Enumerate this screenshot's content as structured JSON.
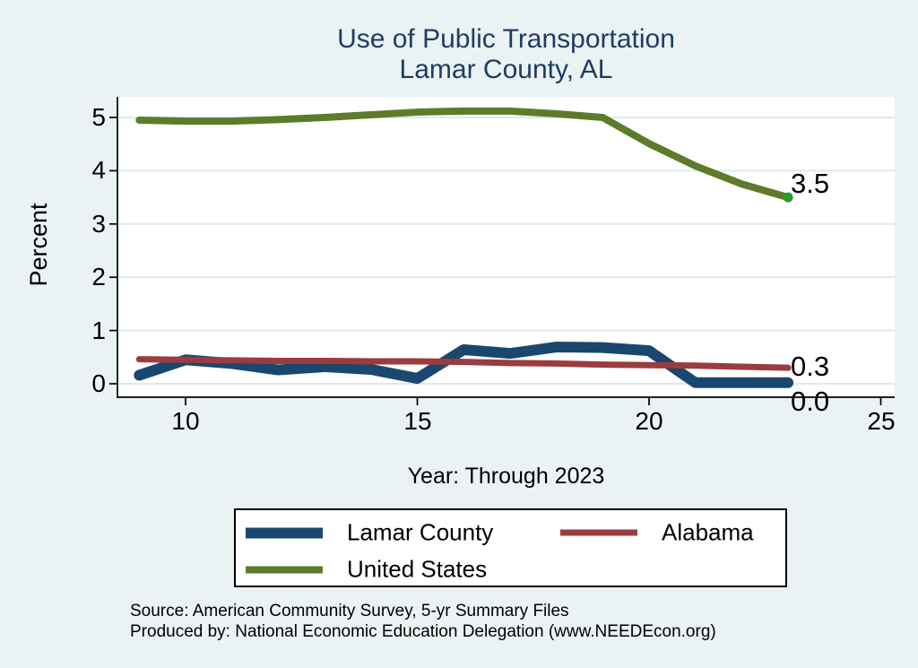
{
  "title": {
    "line1": "Use of Public Transportation",
    "line2": "Lamar County, AL"
  },
  "axes": {
    "y_label": "Percent",
    "x_label": "Year: Through 2023"
  },
  "chart_data": {
    "type": "line",
    "title": "Use of Public Transportation Lamar County, AL",
    "xlabel": "Year: Through 2023",
    "ylabel": "Percent",
    "x": [
      9,
      10,
      11,
      12,
      13,
      14,
      15,
      16,
      17,
      18,
      19,
      20,
      21,
      22,
      23
    ],
    "series": [
      {
        "name": "Lamar County",
        "color": "#1a476f",
        "width": 12,
        "values": [
          0.16,
          0.45,
          0.38,
          0.26,
          0.32,
          0.27,
          0.1,
          0.64,
          0.57,
          0.69,
          0.68,
          0.62,
          0.02,
          0.02,
          0.02
        ]
      },
      {
        "name": "Alabama",
        "color": "#9a3c40",
        "width": 7,
        "values": [
          0.46,
          0.45,
          0.44,
          0.43,
          0.43,
          0.42,
          0.42,
          0.41,
          0.39,
          0.38,
          0.36,
          0.35,
          0.34,
          0.32,
          0.3
        ]
      },
      {
        "name": "United States",
        "color": "#5c7c29",
        "width": 8,
        "end_marker": true,
        "end_marker_color": "#2a9c29",
        "values": [
          4.95,
          4.93,
          4.93,
          4.96,
          5.0,
          5.05,
          5.1,
          5.12,
          5.12,
          5.07,
          5.0,
          4.51,
          4.09,
          3.75,
          3.5
        ]
      }
    ],
    "xticks": [
      10,
      15,
      20,
      25
    ],
    "xtick_labels": [
      "10",
      "15",
      "20",
      "25"
    ],
    "yticks": [
      0,
      1,
      2,
      3,
      4,
      5
    ],
    "ytick_labels": [
      "0",
      "1",
      "2",
      "3",
      "4",
      "5"
    ],
    "xlim": [
      8.55,
      25.3
    ],
    "ylim": [
      -0.25,
      5.39
    ],
    "grid": true,
    "legend_position": "bottom",
    "end_labels": [
      {
        "series": "United States",
        "text": "3.5"
      },
      {
        "series": "Alabama",
        "text": "0.3"
      },
      {
        "series": "Lamar County",
        "text": "0.0"
      }
    ]
  },
  "legend": {
    "items": [
      "Lamar County",
      "Alabama",
      "United States"
    ]
  },
  "footer": {
    "source": "Source: American Community Survey, 5-yr Summary Files",
    "produced_by": "Produced by: National Economic Education Delegation (www.NEEDEcon.org)"
  },
  "colors": {
    "background": "#eaf2f3",
    "plot_background": "#ffffff",
    "gridline": "#dce9f0",
    "axis": "#000000",
    "title": "#1e3d63",
    "text": "#000000",
    "legend_border": "#000000"
  }
}
